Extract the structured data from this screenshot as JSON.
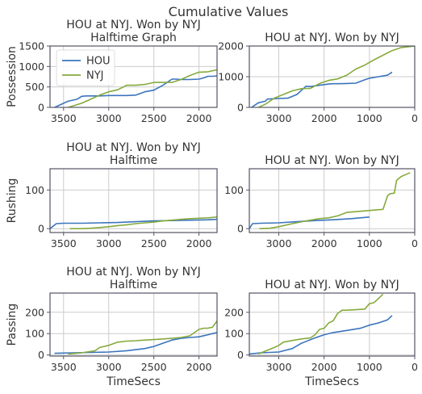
{
  "figure": {
    "title": "Cumulative Values",
    "colors": {
      "HOU": "#3b74bd",
      "NYJ": "#86aa3c"
    }
  },
  "chart_data": [
    {
      "type": "line",
      "title": "HOU at NYJ. Won by NYJ\nHalftime Graph",
      "ylabel": "Possession",
      "xlabel": "",
      "xlim": [
        3650,
        1800
      ],
      "ylim": [
        0,
        1500
      ],
      "xticks": [
        3500,
        3000,
        2500,
        2000
      ],
      "yticks": [
        0,
        500,
        1000,
        1500
      ],
      "grid": true,
      "legend": {
        "placement": "top-left",
        "entries": [
          "HOU",
          "NYJ"
        ]
      },
      "series": [
        {
          "name": "HOU",
          "color": "#3b74bd",
          "x": [
            3600,
            3450,
            3350,
            3300,
            3250,
            3100,
            3000,
            2800,
            2700,
            2600,
            2500,
            2400,
            2300,
            2250,
            2200,
            2100,
            2000,
            1950,
            1900,
            1850,
            1800
          ],
          "y": [
            0,
            150,
            200,
            270,
            280,
            280,
            290,
            290,
            300,
            380,
            420,
            540,
            690,
            690,
            680,
            680,
            690,
            720,
            760,
            760,
            770
          ]
        },
        {
          "name": "NYJ",
          "color": "#86aa3c",
          "x": [
            3450,
            3300,
            3200,
            3100,
            3000,
            2900,
            2800,
            2700,
            2600,
            2500,
            2400,
            2300,
            2200,
            2100,
            2000,
            1900,
            1800
          ],
          "y": [
            0,
            100,
            200,
            300,
            380,
            430,
            540,
            540,
            560,
            610,
            610,
            610,
            680,
            780,
            860,
            870,
            920
          ]
        }
      ]
    },
    {
      "type": "line",
      "title": "HOU at NYJ. Won by NYJ",
      "ylabel": "",
      "xlabel": "",
      "xlim": [
        3650,
        0
      ],
      "ylim": [
        0,
        2000
      ],
      "xticks": [
        3000,
        2000,
        1000,
        0
      ],
      "yticks": [
        0,
        1000,
        2000
      ],
      "grid": true,
      "series": [
        {
          "name": "HOU",
          "color": "#3b74bd",
          "x": [
            3600,
            3450,
            3300,
            3250,
            3000,
            2800,
            2600,
            2400,
            2300,
            2100,
            1900,
            1800,
            1700,
            1500,
            1300,
            1100,
            1000,
            800,
            600,
            500
          ],
          "y": [
            0,
            150,
            200,
            270,
            290,
            300,
            420,
            690,
            680,
            720,
            760,
            770,
            770,
            780,
            790,
            900,
            950,
            1000,
            1050,
            1150
          ]
        },
        {
          "name": "NYJ",
          "color": "#86aa3c",
          "x": [
            3450,
            3300,
            3100,
            2900,
            2700,
            2500,
            2300,
            2100,
            1900,
            1700,
            1500,
            1300,
            1100,
            900,
            700,
            500,
            300,
            0
          ],
          "y": [
            0,
            100,
            300,
            420,
            540,
            610,
            620,
            780,
            880,
            930,
            1050,
            1250,
            1380,
            1550,
            1700,
            1850,
            1950,
            2000
          ]
        }
      ]
    },
    {
      "type": "line",
      "title": "HOU at NYJ. Won by NYJ\nHalftime",
      "ylabel": "Rushing",
      "xlabel": "",
      "xlim": [
        3650,
        1800
      ],
      "ylim": [
        -10,
        155
      ],
      "xticks": [
        3500,
        3000,
        2500,
        2000
      ],
      "yticks": [
        0,
        100
      ],
      "grid": true,
      "series": [
        {
          "name": "HOU",
          "color": "#3b74bd",
          "x": [
            3650,
            3580,
            3500,
            3300,
            3100,
            2900,
            2700,
            2500,
            2300,
            2100,
            1900,
            1800
          ],
          "y": [
            0,
            13,
            14,
            14,
            15,
            16,
            18,
            20,
            21,
            22,
            23,
            24
          ]
        },
        {
          "name": "NYJ",
          "color": "#86aa3c",
          "x": [
            3430,
            3300,
            3200,
            3100,
            3000,
            2900,
            2800,
            2700,
            2600,
            2500,
            2400,
            2300,
            2200,
            2100,
            2000,
            1900,
            1800
          ],
          "y": [
            0,
            0,
            1,
            3,
            5,
            8,
            10,
            13,
            15,
            17,
            20,
            22,
            24,
            26,
            27,
            28,
            30
          ]
        }
      ]
    },
    {
      "type": "line",
      "title": "HOU at NYJ. Won by NYJ",
      "ylabel": "",
      "xlabel": "",
      "xlim": [
        3650,
        0
      ],
      "ylim": [
        -10,
        155
      ],
      "xticks": [
        3000,
        2000,
        1000,
        0
      ],
      "yticks": [
        0,
        100
      ],
      "grid": true,
      "series": [
        {
          "name": "HOU",
          "color": "#3b74bd",
          "x": [
            3650,
            3580,
            3400,
            3000,
            2600,
            2200,
            1800,
            1400,
            1000
          ],
          "y": [
            0,
            13,
            14,
            15,
            18,
            21,
            23,
            26,
            30
          ]
        },
        {
          "name": "NYJ",
          "color": "#86aa3c",
          "x": [
            3430,
            3200,
            3000,
            2700,
            2400,
            2100,
            1900,
            1700,
            1500,
            1200,
            900,
            700,
            600,
            550,
            450,
            400,
            300,
            200,
            100
          ],
          "y": [
            0,
            1,
            5,
            13,
            20,
            26,
            28,
            33,
            42,
            45,
            48,
            50,
            85,
            90,
            92,
            125,
            135,
            140,
            145
          ]
        }
      ]
    },
    {
      "type": "line",
      "title": "HOU at NYJ. Won by NYJ\nHalftime",
      "ylabel": "Passing",
      "xlabel": "TimeSecs",
      "xlim": [
        3650,
        1800
      ],
      "ylim": [
        -5,
        290
      ],
      "xticks": [
        3500,
        3000,
        2500,
        2000
      ],
      "yticks": [
        0,
        100,
        200
      ],
      "grid": true,
      "series": [
        {
          "name": "HOU",
          "color": "#3b74bd",
          "x": [
            3600,
            3400,
            3200,
            3000,
            2800,
            2600,
            2500,
            2400,
            2300,
            2200,
            2100,
            2000,
            1900,
            1850,
            1800
          ],
          "y": [
            8,
            10,
            12,
            14,
            20,
            30,
            40,
            55,
            70,
            78,
            82,
            85,
            95,
            100,
            105
          ]
        },
        {
          "name": "NYJ",
          "color": "#86aa3c",
          "x": [
            3450,
            3300,
            3150,
            3100,
            3000,
            2900,
            2800,
            2700,
            2600,
            2500,
            2400,
            2300,
            2200,
            2100,
            2000,
            1950,
            1900,
            1850,
            1800
          ],
          "y": [
            5,
            10,
            20,
            35,
            45,
            60,
            65,
            67,
            70,
            72,
            75,
            78,
            82,
            90,
            120,
            125,
            126,
            130,
            160
          ]
        }
      ]
    },
    {
      "type": "line",
      "title": "HOU at NYJ. Won by NYJ",
      "ylabel": "",
      "xlabel": "TimeSecs",
      "xlim": [
        3650,
        0
      ],
      "ylim": [
        -5,
        290
      ],
      "xticks": [
        3000,
        2000,
        1000,
        0
      ],
      "yticks": [
        0,
        100,
        200
      ],
      "grid": true,
      "series": [
        {
          "name": "HOU",
          "color": "#3b74bd",
          "x": [
            3650,
            3400,
            3000,
            2700,
            2500,
            2200,
            2000,
            1800,
            1500,
            1200,
            1000,
            800,
            600,
            500
          ],
          "y": [
            5,
            10,
            14,
            30,
            55,
            80,
            95,
            105,
            115,
            125,
            140,
            150,
            165,
            185
          ]
        },
        {
          "name": "NYJ",
          "color": "#86aa3c",
          "x": [
            3450,
            3100,
            3000,
            2900,
            2700,
            2500,
            2300,
            2200,
            2100,
            2000,
            1900,
            1800,
            1700,
            1600,
            1500,
            1300,
            1100,
            1000,
            900,
            700
          ],
          "y": [
            5,
            35,
            45,
            60,
            68,
            75,
            80,
            95,
            120,
            125,
            150,
            160,
            195,
            210,
            210,
            212,
            215,
            240,
            245,
            285
          ]
        }
      ]
    }
  ]
}
